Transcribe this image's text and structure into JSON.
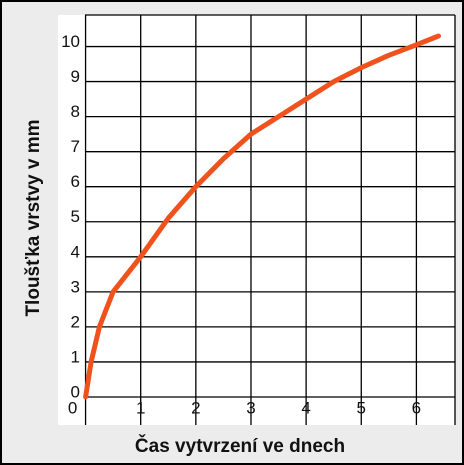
{
  "chart_data": {
    "type": "line",
    "x_label": "Čas vytvrzení ve dnech",
    "y_label": "Tloušťka vrstvy v mm",
    "x": [
      0,
      0.1,
      0.25,
      0.5,
      1,
      1.5,
      2,
      2.5,
      3,
      3.5,
      4,
      4.5,
      5,
      5.5,
      6,
      6.4
    ],
    "series": [
      {
        "color": "#f0521e",
        "values": [
          0,
          1,
          2,
          3,
          4,
          5.1,
          6,
          6.8,
          7.5,
          8,
          8.5,
          9,
          9.4,
          9.75,
          10.05,
          10.3
        ]
      }
    ],
    "xlim": [
      -0.5,
      6.7
    ],
    "ylim": [
      -0.8,
      10.9
    ],
    "xticks": [
      0,
      1,
      2,
      3,
      4,
      5,
      6
    ],
    "yticks": [
      0,
      1,
      2,
      3,
      4,
      5,
      6,
      7,
      8,
      9,
      10
    ],
    "grid": true
  }
}
